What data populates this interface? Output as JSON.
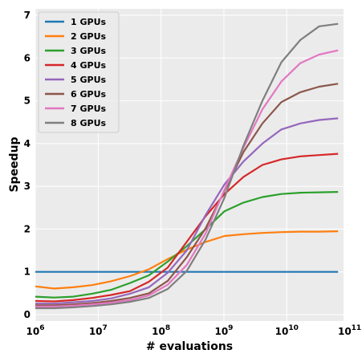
{
  "chart_data": {
    "type": "line",
    "title": "",
    "xlabel": "# evaluations",
    "ylabel": "Speedup",
    "xscale": "log",
    "xlim": [
      1000000,
      80000000000
    ],
    "ylim": [
      -0.15,
      7.15
    ],
    "x_ticks": [
      {
        "value": 1000000,
        "base": "10",
        "exp": "6"
      },
      {
        "value": 10000000,
        "base": "10",
        "exp": "7"
      },
      {
        "value": 100000000,
        "base": "10",
        "exp": "8"
      },
      {
        "value": 1000000000,
        "base": "10",
        "exp": "9"
      },
      {
        "value": 10000000000,
        "base": "10",
        "exp": "10"
      },
      {
        "value": 100000000000,
        "base": "10",
        "exp": "11"
      }
    ],
    "y_ticks": [
      "0",
      "1",
      "2",
      "3",
      "4",
      "5",
      "6",
      "7"
    ],
    "grid": true,
    "legend_position": "top-left",
    "x": [
      1000000,
      2000000,
      4000000,
      8000000,
      16000000,
      32000000,
      64000000,
      128000000,
      256000000,
      512000000,
      1024000000,
      2048000000,
      4096000000,
      8192000000,
      16384000000,
      32768000000,
      65536000000
    ],
    "series": [
      {
        "name": "1 GPUs",
        "color": "#1f77b4",
        "values": [
          1.0,
          1.0,
          1.0,
          1.0,
          1.0,
          1.0,
          1.0,
          1.0,
          1.0,
          1.0,
          1.0,
          1.0,
          1.0,
          1.0,
          1.0,
          1.0,
          1.0
        ]
      },
      {
        "name": "2 GPUs",
        "color": "#ff7f0e",
        "values": [
          0.66,
          0.61,
          0.64,
          0.69,
          0.78,
          0.9,
          1.06,
          1.3,
          1.52,
          1.7,
          1.84,
          1.88,
          1.91,
          1.93,
          1.94,
          1.94,
          1.95
        ]
      },
      {
        "name": "3 GPUs",
        "color": "#2ca02c",
        "values": [
          0.42,
          0.4,
          0.42,
          0.49,
          0.58,
          0.74,
          0.92,
          1.24,
          1.6,
          2.0,
          2.42,
          2.62,
          2.75,
          2.82,
          2.85,
          2.86,
          2.87
        ]
      },
      {
        "name": "4 GPUs",
        "color": "#d62728",
        "values": [
          0.32,
          0.31,
          0.34,
          0.39,
          0.46,
          0.55,
          0.77,
          1.1,
          1.7,
          2.3,
          2.82,
          3.22,
          3.5,
          3.63,
          3.7,
          3.73,
          3.76
        ]
      },
      {
        "name": "5 GPUs",
        "color": "#9467bd",
        "values": [
          0.26,
          0.26,
          0.29,
          0.32,
          0.38,
          0.49,
          0.64,
          0.98,
          1.5,
          2.33,
          3.05,
          3.58,
          4.0,
          4.33,
          4.47,
          4.55,
          4.59
        ]
      },
      {
        "name": "6 GPUs",
        "color": "#8c564b",
        "values": [
          0.22,
          0.22,
          0.24,
          0.27,
          0.32,
          0.39,
          0.5,
          0.79,
          1.34,
          2.02,
          2.9,
          3.8,
          4.47,
          4.97,
          5.2,
          5.33,
          5.4
        ]
      },
      {
        "name": "7 GPUs",
        "color": "#e377c2",
        "values": [
          0.19,
          0.19,
          0.21,
          0.24,
          0.28,
          0.34,
          0.45,
          0.7,
          1.16,
          1.9,
          2.93,
          3.9,
          4.8,
          5.45,
          5.88,
          6.08,
          6.18
        ]
      },
      {
        "name": "8 GPUs",
        "color": "#7f7f7f",
        "values": [
          0.15,
          0.15,
          0.17,
          0.2,
          0.24,
          0.3,
          0.39,
          0.6,
          1.02,
          1.76,
          2.74,
          3.95,
          5.0,
          5.9,
          6.42,
          6.74,
          6.8
        ]
      }
    ]
  }
}
